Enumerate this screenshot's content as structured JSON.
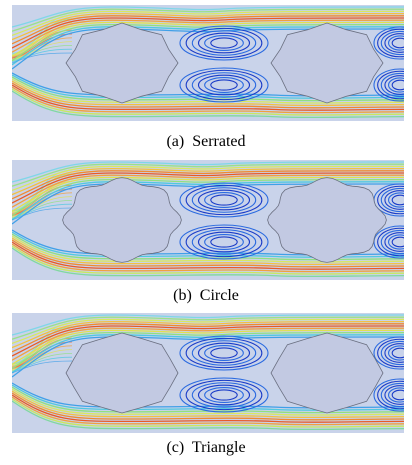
{
  "panels": [
    {
      "caption": "(a)  Serrated"
    },
    {
      "caption": "(b)  Circle"
    },
    {
      "caption": "(c)  Triangle"
    }
  ]
}
